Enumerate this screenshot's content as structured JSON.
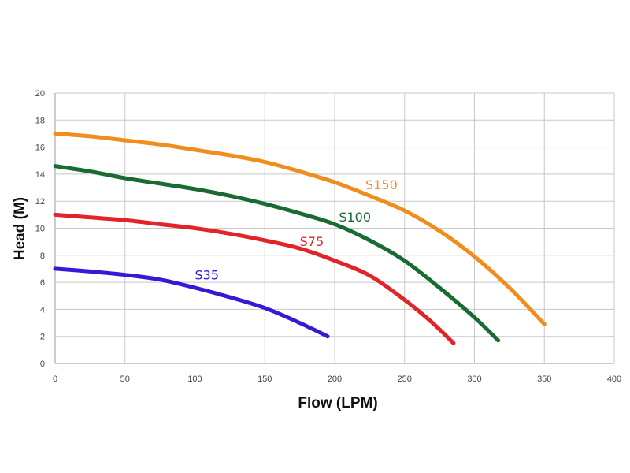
{
  "chart_data": {
    "type": "line",
    "title": "",
    "xlabel": "Flow (LPM)",
    "ylabel": "Head (M)",
    "xlim": [
      0,
      400
    ],
    "ylim": [
      0,
      20
    ],
    "xticks": [
      0,
      50,
      100,
      150,
      200,
      250,
      300,
      350,
      400
    ],
    "yticks": [
      0,
      2,
      4,
      6,
      8,
      10,
      12,
      14,
      16,
      18,
      20
    ],
    "grid": true,
    "legend": "none",
    "series": [
      {
        "name": "S35",
        "color": "#3a17d6",
        "x": [
          0,
          25,
          50,
          75,
          100,
          125,
          150,
          175,
          195
        ],
        "y": [
          7.0,
          6.8,
          6.55,
          6.2,
          5.6,
          4.9,
          4.1,
          3.0,
          2.0
        ]
      },
      {
        "name": "S75",
        "color": "#e2232a",
        "x": [
          0,
          25,
          50,
          75,
          100,
          125,
          150,
          175,
          200,
          225,
          250,
          270,
          285
        ],
        "y": [
          11.0,
          10.8,
          10.6,
          10.3,
          10.0,
          9.6,
          9.1,
          8.5,
          7.6,
          6.5,
          4.7,
          3.0,
          1.5
        ]
      },
      {
        "name": "S100",
        "color": "#1a6a33",
        "x": [
          0,
          25,
          50,
          75,
          100,
          125,
          150,
          175,
          200,
          225,
          250,
          275,
          300,
          317
        ],
        "y": [
          14.6,
          14.2,
          13.7,
          13.3,
          12.9,
          12.4,
          11.8,
          11.1,
          10.3,
          9.1,
          7.6,
          5.6,
          3.4,
          1.7
        ]
      },
      {
        "name": "S150",
        "color": "#f18d1d",
        "x": [
          0,
          25,
          50,
          75,
          100,
          125,
          150,
          175,
          200,
          225,
          250,
          275,
          300,
          325,
          350
        ],
        "y": [
          17.0,
          16.8,
          16.5,
          16.2,
          15.8,
          15.4,
          14.9,
          14.2,
          13.4,
          12.4,
          11.3,
          9.8,
          7.9,
          5.6,
          2.9
        ]
      }
    ],
    "labels": [
      {
        "text": "S35",
        "x": 100,
        "y": 6.2,
        "series": 0
      },
      {
        "text": "S75",
        "x": 175,
        "y": 8.7,
        "series": 1
      },
      {
        "text": "S100",
        "x": 203,
        "y": 10.5,
        "series": 2
      },
      {
        "text": "S150",
        "x": 222,
        "y": 12.9,
        "series": 3
      }
    ]
  }
}
